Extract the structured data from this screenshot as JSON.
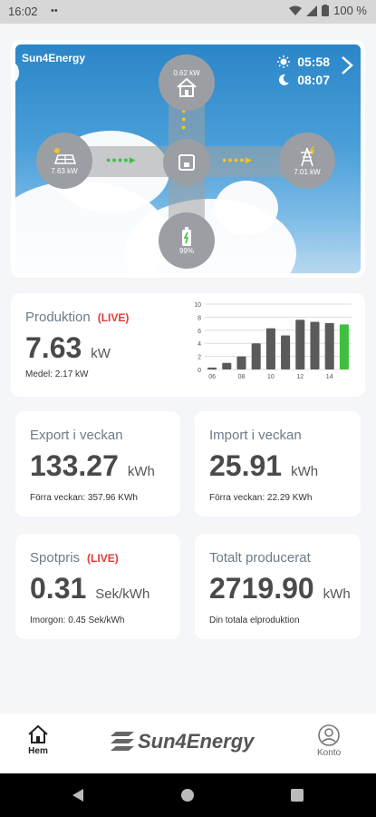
{
  "status_bar": {
    "time": "16:02",
    "indicators": "••",
    "battery": "100 %"
  },
  "hero": {
    "brand": "Sun4Energy",
    "sunrise": "05:58",
    "sunset": "08:07",
    "house_power": "0.62 kW",
    "solar_power": "7.63 kW",
    "grid_power": "7.01 kW",
    "battery_level": "99%"
  },
  "production": {
    "label": "Produktion",
    "live": "(LIVE)",
    "value": "7.63",
    "unit": "kW",
    "sub": "Medel: 2.17 kW"
  },
  "chart_data": {
    "type": "bar",
    "categories": [
      "06",
      "07",
      "08",
      "09",
      "10",
      "11",
      "12",
      "13",
      "14",
      "15"
    ],
    "values": [
      0.3,
      1.0,
      2.0,
      4.0,
      6.3,
      5.2,
      7.6,
      7.3,
      7.1,
      6.9
    ],
    "colors": [
      "#5a5a5a",
      "#5a5a5a",
      "#5a5a5a",
      "#5a5a5a",
      "#5a5a5a",
      "#5a5a5a",
      "#5a5a5a",
      "#5a5a5a",
      "#5a5a5a",
      "#3fbf3f"
    ],
    "x_tick_labels": [
      "06",
      "08",
      "10",
      "12",
      "14"
    ],
    "y_ticks": [
      0,
      2,
      4,
      6,
      8,
      10
    ],
    "ylim": [
      0,
      10
    ],
    "grid": true
  },
  "export_week": {
    "label": "Export i veckan",
    "value": "133.27",
    "unit": "kWh",
    "sub": "Förra veckan: 357.96 KWh"
  },
  "import_week": {
    "label": "Import i veckan",
    "value": "25.91",
    "unit": "kWh",
    "sub": "Förra veckan: 22.29 KWh"
  },
  "spot_price": {
    "label": "Spotpris",
    "live": "(LIVE)",
    "value": "0.31",
    "unit": "Sek/kWh",
    "sub": "Imorgon:  0.45 Sek/kWh"
  },
  "total_produced": {
    "label": "Totalt producerat",
    "value": "2719.90",
    "unit": "kWh",
    "sub": "Din totala elproduktion"
  },
  "nav": {
    "home": "Hem",
    "brand": "Sun4Energy",
    "account": "Konto"
  },
  "accent": {
    "live": "#e53935",
    "green": "#3fbf3f",
    "arrow_yellow": "#f5c518"
  }
}
